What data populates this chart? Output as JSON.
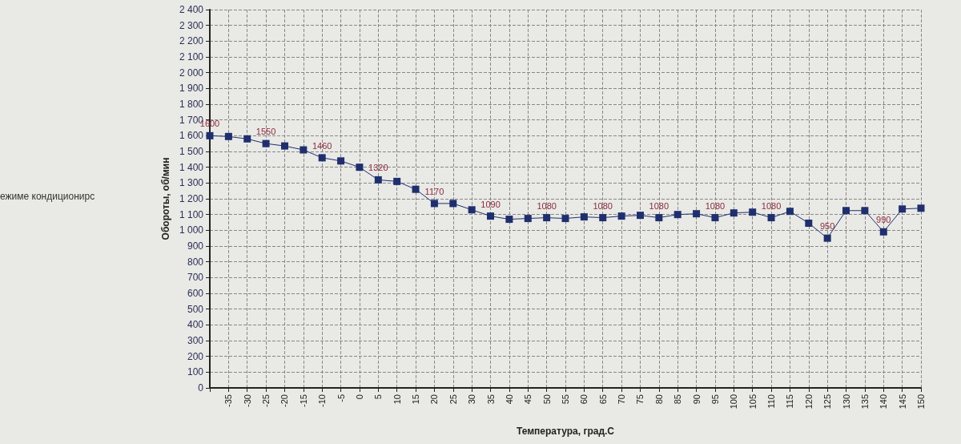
{
  "chart_data": {
    "type": "line",
    "xlabel": "Температура, град.С",
    "ylabel": "Обороты, об/мин",
    "annotations": [
      "ежиме кондиционирс"
    ],
    "categories": [
      null,
      "-35",
      "-30",
      "-25",
      "-20",
      "-15",
      "-10",
      "-5",
      "0",
      "5",
      "10",
      "15",
      "20",
      "25",
      "30",
      "35",
      "40",
      "45",
      "50",
      "55",
      "60",
      "65",
      "70",
      "75",
      "80",
      "85",
      "90",
      "95",
      "100",
      "105",
      "110",
      "115",
      "120",
      "125",
      "130",
      "135",
      "140",
      "145",
      "150"
    ],
    "series": [
      {
        "color": "#1f2f6e",
        "values": [
          1600,
          1595,
          1580,
          1550,
          1535,
          1510,
          1460,
          1440,
          1400,
          1320,
          1310,
          1260,
          1170,
          1170,
          1130,
          1090,
          1070,
          1075,
          1080,
          1075,
          1085,
          1080,
          1090,
          1095,
          1080,
          1100,
          1105,
          1080,
          1110,
          1115,
          1080,
          1120,
          1045,
          950,
          1125,
          1125,
          990,
          1135,
          1140
        ],
        "value_labels": [
          "1600",
          null,
          null,
          "1550",
          null,
          null,
          "1460",
          null,
          null,
          "1320",
          null,
          null,
          "1170",
          null,
          null,
          "1090",
          null,
          null,
          "1080",
          null,
          null,
          "1080",
          null,
          null,
          "1080",
          null,
          null,
          "1080",
          null,
          null,
          "1080",
          null,
          null,
          "950",
          null,
          null,
          "990",
          null,
          null
        ]
      }
    ],
    "ylim": [
      0,
      2400
    ],
    "yticks": [
      0,
      100,
      200,
      300,
      400,
      500,
      600,
      700,
      800,
      900,
      {
        "value": 1000,
        "label": "1 000"
      },
      {
        "value": 1100,
        "label": "1 100"
      },
      {
        "value": 1200,
        "label": "1 200"
      },
      {
        "value": 1300,
        "label": "1 300"
      },
      {
        "value": 1400,
        "label": "1 400"
      },
      {
        "value": 1500,
        "label": "1 500"
      },
      {
        "value": 1600,
        "label": "1 600"
      },
      {
        "value": 1700,
        "label": "1 700"
      },
      {
        "value": 1800,
        "label": "1 800"
      },
      {
        "value": 1900,
        "label": "1 900"
      },
      {
        "value": 2000,
        "label": "2 000"
      },
      {
        "value": 2100,
        "label": "2 100"
      },
      {
        "value": 2200,
        "label": "2 200"
      },
      {
        "value": 2300,
        "label": "2 300"
      },
      {
        "value": 2400,
        "label": "2 400"
      }
    ],
    "grid": true,
    "marker": "square",
    "line_style": "solid"
  }
}
